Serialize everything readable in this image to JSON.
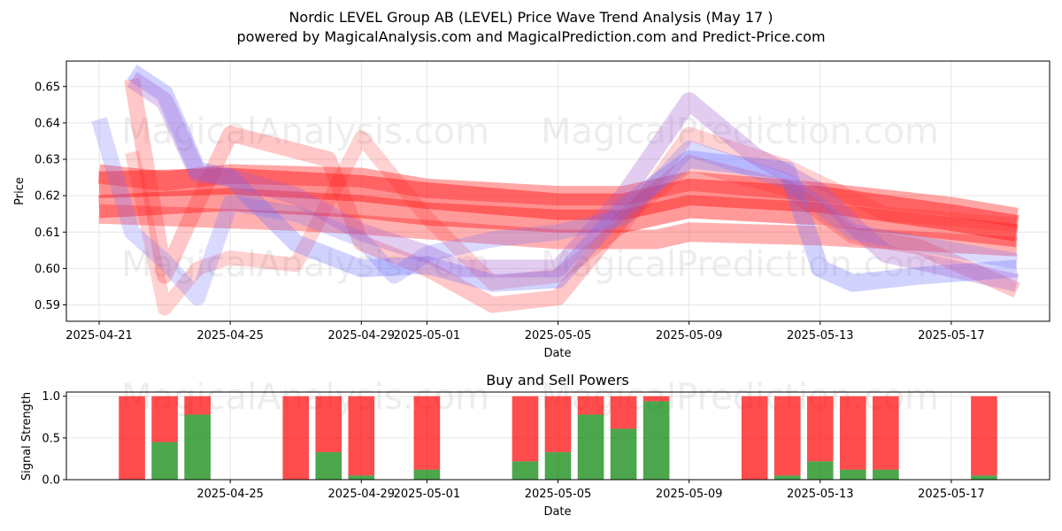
{
  "title_line1": "Nordic LEVEL Group AB (LEVEL) Price Wave Trend Analysis (May 17 )",
  "title_line2": "powered by MagicalAnalysis.com and MagicalPrediction.com and Predict-Price.com",
  "watermarks": [
    "MagicalAnalysis.com",
    "MagicalPrediction.com"
  ],
  "colors": {
    "sell": "#ff0000",
    "buy": "#008000",
    "wave_red": "#ff2020",
    "wave_blue": "#6a6aff",
    "wave_purple": "#a05ad0",
    "grid": "#e6e6e6"
  },
  "chart_data": [
    {
      "type": "line",
      "title": "",
      "xlabel": "Date",
      "ylabel": "Price",
      "xlim": [
        "2025-04-20",
        "2025-05-20"
      ],
      "ylim": [
        0.5855,
        0.657
      ],
      "x_ticks": [
        "2025-04-21",
        "2025-04-25",
        "2025-04-29",
        "2025-05-01",
        "2025-05-05",
        "2025-05-09",
        "2025-05-13",
        "2025-05-17"
      ],
      "y_ticks": [
        "0.59",
        "0.60",
        "0.61",
        "0.62",
        "0.63",
        "0.64",
        "0.65"
      ],
      "grid": true,
      "series": [
        {
          "color": "red",
          "opacity": 0.5,
          "x": [
            "2025-04-21",
            "2025-04-25",
            "2025-04-29",
            "2025-05-01",
            "2025-05-05",
            "2025-05-07",
            "2025-05-09",
            "2025-05-13",
            "2025-05-17",
            "2025-05-19"
          ],
          "y": [
            0.623,
            0.624,
            0.622,
            0.62,
            0.617,
            0.617,
            0.621,
            0.619,
            0.614,
            0.611
          ]
        },
        {
          "color": "red",
          "opacity": 0.45,
          "x": [
            "2025-04-21",
            "2025-04-25",
            "2025-04-29",
            "2025-05-01",
            "2025-05-05",
            "2025-05-07",
            "2025-05-09",
            "2025-05-13",
            "2025-05-17",
            "2025-05-19"
          ],
          "y": [
            0.617,
            0.619,
            0.617,
            0.615,
            0.613,
            0.613,
            0.617,
            0.615,
            0.611,
            0.609
          ]
        },
        {
          "color": "red",
          "opacity": 0.4,
          "x": [
            "2025-04-21",
            "2025-04-23",
            "2025-04-25",
            "2025-04-29",
            "2025-05-01",
            "2025-05-05",
            "2025-05-07",
            "2025-05-09",
            "2025-05-13",
            "2025-05-17",
            "2025-05-19"
          ],
          "y": [
            0.626,
            0.624,
            0.626,
            0.625,
            0.622,
            0.62,
            0.62,
            0.624,
            0.621,
            0.617,
            0.614
          ]
        },
        {
          "color": "red",
          "opacity": 0.35,
          "x": [
            "2025-04-21",
            "2025-04-24",
            "2025-04-27",
            "2025-04-29",
            "2025-05-02",
            "2025-05-05",
            "2025-05-08",
            "2025-05-09",
            "2025-05-13",
            "2025-05-17",
            "2025-05-19"
          ],
          "y": [
            0.615,
            0.614,
            0.613,
            0.612,
            0.61,
            0.608,
            0.608,
            0.61,
            0.609,
            0.607,
            0.606
          ]
        },
        {
          "color": "red",
          "opacity": 0.25,
          "x": [
            "2025-04-22",
            "2025-04-23",
            "2025-04-24",
            "2025-04-25",
            "2025-04-28",
            "2025-04-29",
            "2025-05-01",
            "2025-05-03",
            "2025-05-05",
            "2025-05-07",
            "2025-05-09",
            "2025-05-12",
            "2025-05-14",
            "2025-05-16",
            "2025-05-19"
          ],
          "y": [
            0.652,
            0.598,
            0.618,
            0.637,
            0.63,
            0.607,
            0.6,
            0.59,
            0.592,
            0.614,
            0.629,
            0.622,
            0.609,
            0.606,
            0.594
          ]
        },
        {
          "color": "red",
          "opacity": 0.2,
          "x": [
            "2025-04-22",
            "2025-04-23",
            "2025-04-24",
            "2025-04-25",
            "2025-04-27",
            "2025-04-29",
            "2025-05-01",
            "2025-05-03",
            "2025-05-05",
            "2025-05-07",
            "2025-05-09",
            "2025-05-12",
            "2025-05-15",
            "2025-05-19"
          ],
          "y": [
            0.632,
            0.589,
            0.6,
            0.603,
            0.601,
            0.636,
            0.614,
            0.596,
            0.598,
            0.612,
            0.637,
            0.628,
            0.615,
            0.612
          ]
        },
        {
          "color": "blue",
          "opacity": 0.3,
          "x": [
            "2025-04-22",
            "2025-04-23",
            "2025-04-24",
            "2025-04-25",
            "2025-04-27",
            "2025-04-29",
            "2025-05-01",
            "2025-05-03",
            "2025-05-05",
            "2025-05-07",
            "2025-05-09",
            "2025-05-12",
            "2025-05-13",
            "2025-05-14",
            "2025-05-16",
            "2025-05-19"
          ],
          "y": [
            0.654,
            0.648,
            0.627,
            0.625,
            0.607,
            0.6,
            0.601,
            0.596,
            0.597,
            0.617,
            0.63,
            0.627,
            0.6,
            0.596,
            0.598,
            0.6
          ]
        },
        {
          "color": "blue",
          "opacity": 0.25,
          "x": [
            "2025-04-21",
            "2025-04-22",
            "2025-04-23",
            "2025-04-24",
            "2025-04-25",
            "2025-04-27",
            "2025-04-29",
            "2025-04-30",
            "2025-05-01",
            "2025-05-03",
            "2025-05-05",
            "2025-05-07",
            "2025-05-09",
            "2025-05-12",
            "2025-05-14",
            "2025-05-19"
          ],
          "y": [
            0.641,
            0.61,
            0.602,
            0.592,
            0.618,
            0.615,
            0.608,
            0.598,
            0.604,
            0.608,
            0.61,
            0.614,
            0.633,
            0.624,
            0.61,
            0.602
          ]
        },
        {
          "color": "purple",
          "opacity": 0.3,
          "x": [
            "2025-04-22",
            "2025-04-23",
            "2025-04-24",
            "2025-04-25",
            "2025-04-27",
            "2025-04-29",
            "2025-05-01",
            "2025-05-02",
            "2025-05-05",
            "2025-05-07",
            "2025-05-09",
            "2025-05-11",
            "2025-05-13",
            "2025-05-14",
            "2025-05-15",
            "2025-05-19"
          ],
          "y": [
            0.652,
            0.646,
            0.626,
            0.625,
            0.62,
            0.61,
            0.604,
            0.6,
            0.6,
            0.62,
            0.646,
            0.631,
            0.621,
            0.612,
            0.604,
            0.596
          ]
        }
      ]
    },
    {
      "type": "bar",
      "title": "Buy and Sell Powers",
      "xlabel": "Date",
      "ylabel": "Signal Strength",
      "xlim": [
        "2025-04-20",
        "2025-05-20"
      ],
      "ylim": [
        0,
        1.05
      ],
      "x_ticks": [
        "2025-04-25",
        "2025-04-29",
        "2025-05-01",
        "2025-05-05",
        "2025-05-09",
        "2025-05-13",
        "2025-05-17"
      ],
      "y_ticks": [
        "0.0",
        "0.5",
        "1.0"
      ],
      "grid": true,
      "dates": [
        "2025-04-22",
        "2025-04-23",
        "2025-04-24",
        "2025-04-27",
        "2025-04-28",
        "2025-04-29",
        "2025-05-01",
        "2025-05-04",
        "2025-05-05",
        "2025-05-06",
        "2025-05-07",
        "2025-05-08",
        "2025-05-11",
        "2025-05-12",
        "2025-05-13",
        "2025-05-14",
        "2025-05-15",
        "2025-05-18"
      ],
      "series": [
        {
          "color": "green",
          "values": [
            0.0,
            0.45,
            0.78,
            0.0,
            0.33,
            0.05,
            0.12,
            0.22,
            0.33,
            0.78,
            0.61,
            0.94,
            0.0,
            0.05,
            0.22,
            0.12,
            0.12,
            0.05
          ]
        },
        {
          "color": "red",
          "values": [
            1.0,
            0.55,
            0.22,
            1.0,
            0.67,
            0.95,
            0.88,
            0.78,
            0.67,
            0.22,
            0.39,
            0.06,
            1.0,
            0.95,
            0.78,
            0.88,
            0.88,
            0.95
          ]
        }
      ]
    }
  ]
}
